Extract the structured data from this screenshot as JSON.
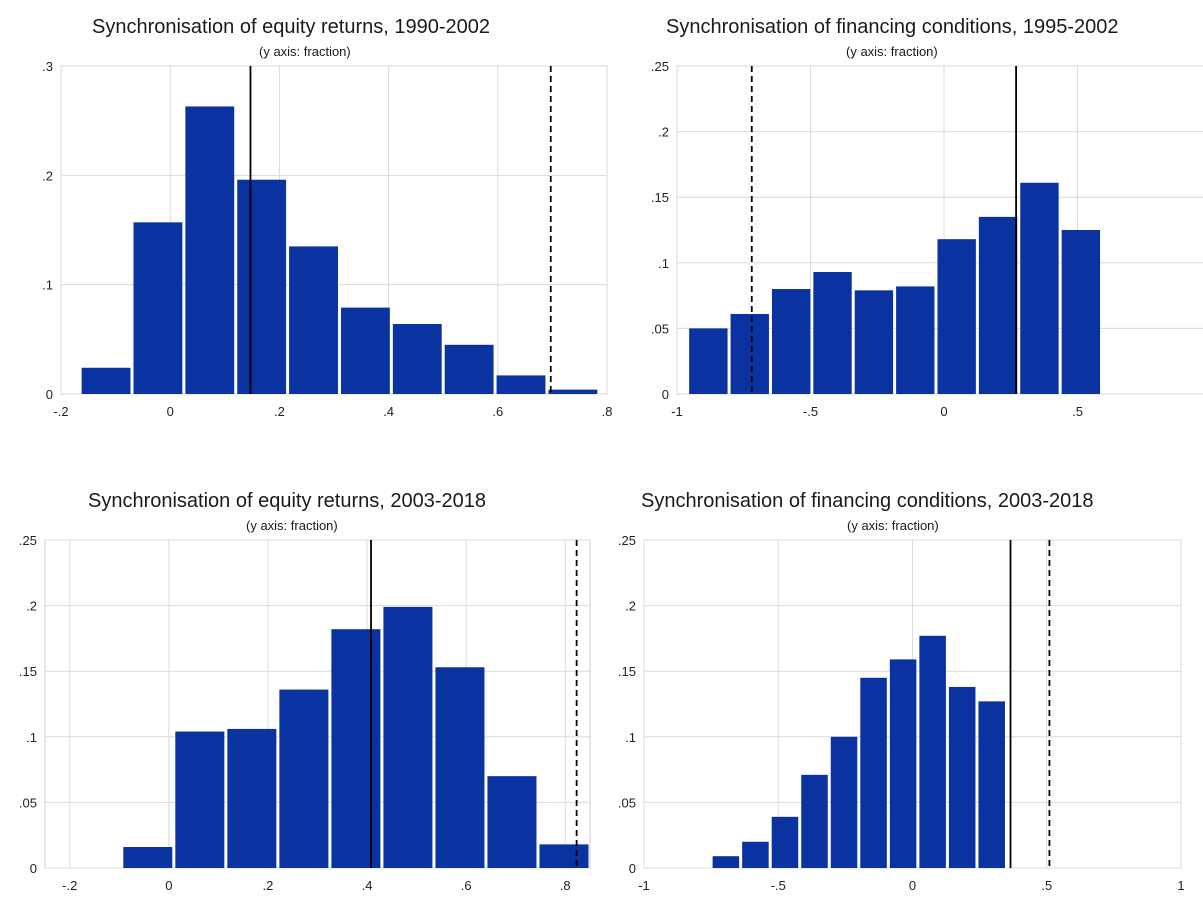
{
  "colors": {
    "bar": "#0a32a0",
    "grid": "#dadada",
    "axis": "#cfcfcf",
    "line": "#000000"
  },
  "chart_data": [
    {
      "type": "bar",
      "title": "Synchronisation of equity returns, 1990-2002",
      "subtitle": "(y axis: fraction)",
      "xlim": [
        -0.2,
        0.8
      ],
      "ylim": [
        0,
        0.3
      ],
      "xticks": [
        -0.2,
        0,
        0.2,
        0.4,
        0.6,
        0.8
      ],
      "xtick_labels": [
        "-.2",
        "0",
        ".2",
        ".4",
        ".6",
        ".8"
      ],
      "yticks": [
        0,
        0.1,
        0.2,
        0.3
      ],
      "ytick_labels": [
        "0",
        ".1",
        ".2",
        ".3"
      ],
      "grid": true,
      "bins": [
        {
          "x0": -0.165,
          "x1": -0.07,
          "value": 0.024
        },
        {
          "x0": -0.07,
          "x1": 0.025,
          "value": 0.157
        },
        {
          "x0": 0.025,
          "x1": 0.12,
          "value": 0.263
        },
        {
          "x0": 0.12,
          "x1": 0.215,
          "value": 0.196
        },
        {
          "x0": 0.215,
          "x1": 0.31,
          "value": 0.135
        },
        {
          "x0": 0.31,
          "x1": 0.405,
          "value": 0.079
        },
        {
          "x0": 0.405,
          "x1": 0.5,
          "value": 0.064
        },
        {
          "x0": 0.5,
          "x1": 0.595,
          "value": 0.045
        },
        {
          "x0": 0.595,
          "x1": 0.69,
          "value": 0.017
        },
        {
          "x0": 0.69,
          "x1": 0.785,
          "value": 0.004
        }
      ],
      "solid_line": 0.147,
      "dashed_line": 0.697
    },
    {
      "type": "bar",
      "title": "Synchronisation of financing conditions, 1995-2002",
      "subtitle": "(y axis: fraction)",
      "xlim": [
        -1,
        1
      ],
      "ylim": [
        0,
        0.25
      ],
      "xticks": [
        -1,
        -0.5,
        0,
        0.5,
        1
      ],
      "xtick_labels": [
        "-1",
        "-.5",
        "0",
        ".5",
        "1"
      ],
      "yticks": [
        0,
        0.05,
        0.1,
        0.15,
        0.2,
        0.25
      ],
      "ytick_labels": [
        "0",
        ".05",
        ".1",
        ".15",
        ".2",
        ".25"
      ],
      "grid": true,
      "bins": [
        {
          "x0": -0.96,
          "x1": -0.805,
          "value": 0.05
        },
        {
          "x0": -0.805,
          "x1": -0.65,
          "value": 0.061
        },
        {
          "x0": -0.65,
          "x1": -0.495,
          "value": 0.08
        },
        {
          "x0": -0.495,
          "x1": -0.34,
          "value": 0.093
        },
        {
          "x0": -0.34,
          "x1": -0.185,
          "value": 0.079
        },
        {
          "x0": -0.185,
          "x1": -0.03,
          "value": 0.082
        },
        {
          "x0": -0.03,
          "x1": 0.125,
          "value": 0.118
        },
        {
          "x0": 0.125,
          "x1": 0.28,
          "value": 0.135
        },
        {
          "x0": 0.28,
          "x1": 0.435,
          "value": 0.161
        },
        {
          "x0": 0.435,
          "x1": 0.59,
          "value": 0.125
        }
      ],
      "solid_line": 0.27,
      "dashed_line": -0.72
    },
    {
      "type": "bar",
      "title": "Synchronisation of equity returns, 2003-2018",
      "subtitle": "(y axis: fraction)",
      "xlim": [
        -0.25,
        0.85
      ],
      "ylim": [
        0,
        0.25
      ],
      "xticks": [
        -0.2,
        0,
        0.2,
        0.4,
        0.6,
        0.8
      ],
      "xtick_labels": [
        "-.2",
        "0",
        ".2",
        ".4",
        ".6",
        ".8"
      ],
      "yticks": [
        0,
        0.05,
        0.1,
        0.15,
        0.2,
        0.25
      ],
      "ytick_labels": [
        "0",
        ".05",
        ".1",
        ".15",
        ".2",
        ".25"
      ],
      "grid": true,
      "bins": [
        {
          "x0": -0.095,
          "x1": 0.01,
          "value": 0.016
        },
        {
          "x0": 0.01,
          "x1": 0.115,
          "value": 0.104
        },
        {
          "x0": 0.115,
          "x1": 0.22,
          "value": 0.106
        },
        {
          "x0": 0.22,
          "x1": 0.325,
          "value": 0.136
        },
        {
          "x0": 0.325,
          "x1": 0.43,
          "value": 0.182
        },
        {
          "x0": 0.43,
          "x1": 0.535,
          "value": 0.199
        },
        {
          "x0": 0.535,
          "x1": 0.64,
          "value": 0.153
        },
        {
          "x0": 0.64,
          "x1": 0.745,
          "value": 0.07
        },
        {
          "x0": 0.745,
          "x1": 0.85,
          "value": 0.018
        }
      ],
      "solid_line": 0.408,
      "dashed_line": 0.823
    },
    {
      "type": "bar",
      "title": "Synchronisation of financing conditions, 2003-2018",
      "subtitle": "(y axis: fraction)",
      "xlim": [
        -1,
        1
      ],
      "ylim": [
        0,
        0.25
      ],
      "xticks": [
        -1,
        -0.5,
        0,
        0.5,
        1
      ],
      "xtick_labels": [
        "-1",
        "-.5",
        "0",
        ".5",
        "1"
      ],
      "yticks": [
        0,
        0.05,
        0.1,
        0.15,
        0.2,
        0.25
      ],
      "ytick_labels": [
        "0",
        ".05",
        ".1",
        ".15",
        ".2",
        ".25"
      ],
      "grid": true,
      "bins": [
        {
          "x0": -0.75,
          "x1": -0.64,
          "value": 0.009
        },
        {
          "x0": -0.64,
          "x1": -0.53,
          "value": 0.02
        },
        {
          "x0": -0.53,
          "x1": -0.42,
          "value": 0.039
        },
        {
          "x0": -0.42,
          "x1": -0.31,
          "value": 0.071
        },
        {
          "x0": -0.31,
          "x1": -0.2,
          "value": 0.1
        },
        {
          "x0": -0.2,
          "x1": -0.09,
          "value": 0.145
        },
        {
          "x0": -0.09,
          "x1": 0.02,
          "value": 0.159
        },
        {
          "x0": 0.02,
          "x1": 0.13,
          "value": 0.177
        },
        {
          "x0": 0.13,
          "x1": 0.24,
          "value": 0.138
        },
        {
          "x0": 0.24,
          "x1": 0.35,
          "value": 0.127
        }
      ],
      "solid_line": 0.365,
      "dashed_line": 0.51
    }
  ]
}
